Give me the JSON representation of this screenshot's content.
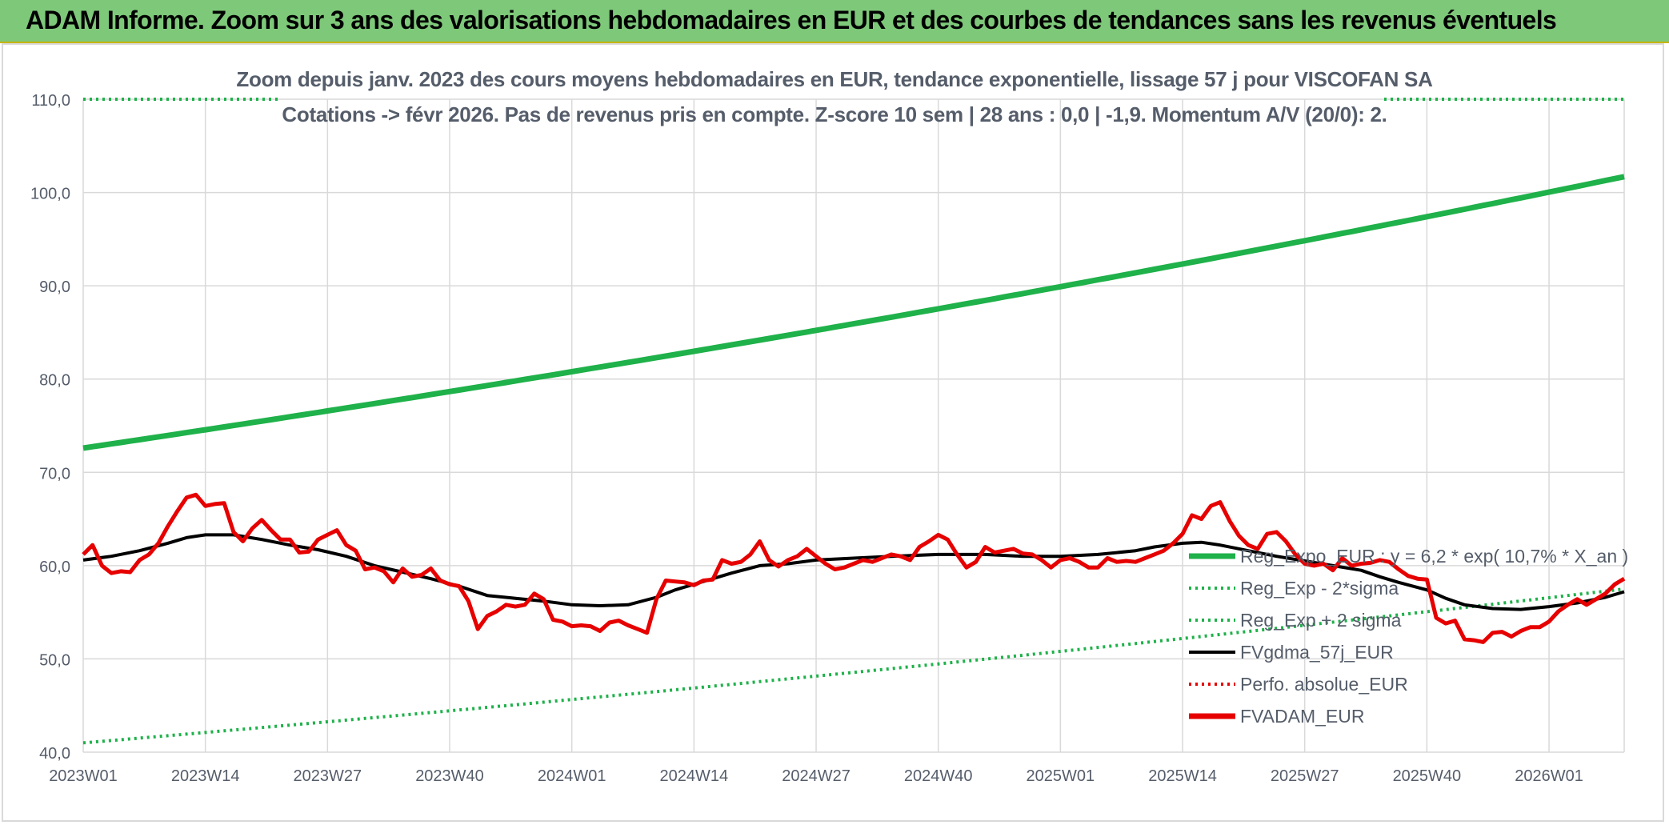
{
  "header": {
    "title": "ADAM Informe. Zoom sur 3 ans des valorisations hebdomadaires en EUR et des courbes de tendances sans les revenus éventuels"
  },
  "colors": {
    "green": "#1fb14a",
    "red": "#e60000",
    "black": "#000000",
    "grid": "#d9d9d9",
    "axis_text": "#555d6a"
  },
  "chart_data": {
    "type": "line",
    "title": "Zoom depuis janv. 2023 des cours moyens hebdomadaires en EUR, tendance exponentielle, lissage 57 j pour VISCOFAN SA",
    "subtitle": "Cotations -> févr 2026. Pas de revenus pris en compte. Z-score 10 sem | 28 ans : 0,0 | -1,9. Momentum A/V (20/0): 2.",
    "ylim": [
      40,
      110
    ],
    "y_ticks": [
      "40,0",
      "50,0",
      "60,0",
      "70,0",
      "80,0",
      "90,0",
      "100,0",
      "110,0"
    ],
    "x_ticks": [
      "2023W01",
      "2023W14",
      "2023W27",
      "2023W40",
      "2024W01",
      "2024W14",
      "2024W27",
      "2024W40",
      "2025W01",
      "2025W14",
      "2025W27",
      "2025W40",
      "2026W01"
    ],
    "x_tick_index": [
      0,
      13,
      26,
      39,
      52,
      65,
      78,
      91,
      104,
      117,
      130,
      143,
      156
    ],
    "n_weeks": 165,
    "grid": true,
    "legend_position": "bottom-right",
    "legend": [
      {
        "label": "Reg_Expo_EUR : y = 6,2 * exp( 10,7% *  X_an )",
        "style": "solid-thick",
        "color": "#1fb14a"
      },
      {
        "label": "Reg_Exp - 2*sigma",
        "style": "dotted",
        "color": "#1fb14a"
      },
      {
        "label": "Reg_Exp + 2 sigma",
        "style": "dotted",
        "color": "#1fb14a"
      },
      {
        "label": "FVgdma_57j_EUR",
        "style": "solid",
        "color": "#000000"
      },
      {
        "label": "Perfo. absolue_EUR",
        "style": "dotted",
        "color": "#e60000"
      },
      {
        "label": "FVADAM_EUR",
        "style": "solid-thick",
        "color": "#e60000"
      }
    ],
    "series": {
      "reg_expo": {
        "start": 72.6,
        "end": 101.7
      },
      "reg_minus": {
        "start": 41.0,
        "end": 57.5
      },
      "reg_plus": {
        "value": 110.0
      },
      "fvgdma": [
        [
          0,
          60.6
        ],
        [
          3,
          61.0
        ],
        [
          6,
          61.6
        ],
        [
          9,
          62.4
        ],
        [
          11,
          63.0
        ],
        [
          13,
          63.3
        ],
        [
          16,
          63.3
        ],
        [
          19,
          62.8
        ],
        [
          22,
          62.2
        ],
        [
          25,
          61.7
        ],
        [
          28,
          61.0
        ],
        [
          31,
          60.0
        ],
        [
          34,
          59.3
        ],
        [
          37,
          58.6
        ],
        [
          40,
          57.8
        ],
        [
          43,
          56.8
        ],
        [
          46,
          56.5
        ],
        [
          49,
          56.2
        ],
        [
          52,
          55.8
        ],
        [
          55,
          55.7
        ],
        [
          58,
          55.8
        ],
        [
          61,
          56.6
        ],
        [
          63,
          57.4
        ],
        [
          66,
          58.3
        ],
        [
          69,
          59.2
        ],
        [
          72,
          60.0
        ],
        [
          75,
          60.2
        ],
        [
          78,
          60.6
        ],
        [
          82,
          60.8
        ],
        [
          86,
          61.0
        ],
        [
          91,
          61.2
        ],
        [
          96,
          61.2
        ],
        [
          100,
          61.0
        ],
        [
          104,
          61.0
        ],
        [
          108,
          61.2
        ],
        [
          112,
          61.6
        ],
        [
          114,
          62.0
        ],
        [
          117,
          62.4
        ],
        [
          119,
          62.5
        ],
        [
          121,
          62.2
        ],
        [
          124,
          61.6
        ],
        [
          127,
          61.0
        ],
        [
          130,
          60.5
        ],
        [
          133,
          60.0
        ],
        [
          136,
          59.5
        ],
        [
          138,
          58.8
        ],
        [
          140,
          58.2
        ],
        [
          143,
          57.4
        ],
        [
          145,
          56.5
        ],
        [
          147,
          55.8
        ],
        [
          150,
          55.4
        ],
        [
          153,
          55.3
        ],
        [
          156,
          55.6
        ],
        [
          159,
          56.0
        ],
        [
          162,
          56.6
        ],
        [
          164,
          57.2
        ]
      ],
      "fvadam": [
        [
          0,
          61.2
        ],
        [
          1,
          62.2
        ],
        [
          2,
          60.0
        ],
        [
          3,
          59.2
        ],
        [
          4,
          59.4
        ],
        [
          5,
          59.3
        ],
        [
          6,
          60.6
        ],
        [
          7,
          61.2
        ],
        [
          8,
          62.4
        ],
        [
          9,
          64.2
        ],
        [
          10,
          65.8
        ],
        [
          11,
          67.3
        ],
        [
          12,
          67.6
        ],
        [
          13,
          66.4
        ],
        [
          14,
          66.6
        ],
        [
          15,
          66.7
        ],
        [
          16,
          63.6
        ],
        [
          17,
          62.6
        ],
        [
          18,
          64.0
        ],
        [
          19,
          64.9
        ],
        [
          20,
          63.8
        ],
        [
          21,
          62.8
        ],
        [
          22,
          62.8
        ],
        [
          23,
          61.4
        ],
        [
          24,
          61.5
        ],
        [
          25,
          62.8
        ],
        [
          26,
          63.3
        ],
        [
          27,
          63.8
        ],
        [
          28,
          62.2
        ],
        [
          29,
          61.6
        ],
        [
          30,
          59.6
        ],
        [
          31,
          59.8
        ],
        [
          32,
          59.4
        ],
        [
          33,
          58.2
        ],
        [
          34,
          59.7
        ],
        [
          35,
          58.8
        ],
        [
          36,
          59.0
        ],
        [
          37,
          59.7
        ],
        [
          38,
          58.4
        ],
        [
          39,
          58.0
        ],
        [
          40,
          57.8
        ],
        [
          41,
          56.2
        ],
        [
          42,
          53.2
        ],
        [
          43,
          54.6
        ],
        [
          44,
          55.1
        ],
        [
          45,
          55.8
        ],
        [
          46,
          55.6
        ],
        [
          47,
          55.8
        ],
        [
          48,
          57.0
        ],
        [
          49,
          56.4
        ],
        [
          50,
          54.2
        ],
        [
          51,
          54.0
        ],
        [
          52,
          53.5
        ],
        [
          53,
          53.6
        ],
        [
          54,
          53.5
        ],
        [
          55,
          53.0
        ],
        [
          56,
          53.9
        ],
        [
          57,
          54.1
        ],
        [
          58,
          53.6
        ],
        [
          59,
          53.2
        ],
        [
          60,
          52.8
        ],
        [
          61,
          56.4
        ],
        [
          62,
          58.4
        ],
        [
          63,
          58.3
        ],
        [
          64,
          58.2
        ],
        [
          65,
          57.9
        ],
        [
          66,
          58.4
        ],
        [
          67,
          58.5
        ],
        [
          68,
          60.6
        ],
        [
          69,
          60.2
        ],
        [
          70,
          60.4
        ],
        [
          71,
          61.2
        ],
        [
          72,
          62.6
        ],
        [
          73,
          60.6
        ],
        [
          74,
          59.9
        ],
        [
          75,
          60.6
        ],
        [
          76,
          61.0
        ],
        [
          77,
          61.8
        ],
        [
          78,
          61.0
        ],
        [
          79,
          60.2
        ],
        [
          80,
          59.6
        ],
        [
          81,
          59.8
        ],
        [
          82,
          60.2
        ],
        [
          83,
          60.6
        ],
        [
          84,
          60.4
        ],
        [
          85,
          60.8
        ],
        [
          86,
          61.2
        ],
        [
          87,
          61.0
        ],
        [
          88,
          60.6
        ],
        [
          89,
          62.0
        ],
        [
          90,
          62.6
        ],
        [
          91,
          63.3
        ],
        [
          92,
          62.8
        ],
        [
          93,
          61.2
        ],
        [
          94,
          59.8
        ],
        [
          95,
          60.4
        ],
        [
          96,
          62.0
        ],
        [
          97,
          61.4
        ],
        [
          98,
          61.6
        ],
        [
          99,
          61.8
        ],
        [
          100,
          61.3
        ],
        [
          101,
          61.2
        ],
        [
          102,
          60.6
        ],
        [
          103,
          59.8
        ],
        [
          104,
          60.6
        ],
        [
          105,
          60.8
        ],
        [
          106,
          60.4
        ],
        [
          107,
          59.8
        ],
        [
          108,
          59.8
        ],
        [
          109,
          60.8
        ],
        [
          110,
          60.4
        ],
        [
          111,
          60.5
        ],
        [
          112,
          60.4
        ],
        [
          113,
          60.8
        ],
        [
          114,
          61.2
        ],
        [
          115,
          61.6
        ],
        [
          116,
          62.4
        ],
        [
          117,
          63.4
        ],
        [
          118,
          65.4
        ],
        [
          119,
          65.0
        ],
        [
          120,
          66.4
        ],
        [
          121,
          66.8
        ],
        [
          122,
          64.8
        ],
        [
          123,
          63.2
        ],
        [
          124,
          62.2
        ],
        [
          125,
          61.8
        ],
        [
          126,
          63.4
        ],
        [
          127,
          63.6
        ],
        [
          128,
          62.6
        ],
        [
          129,
          61.2
        ],
        [
          130,
          60.2
        ],
        [
          131,
          60.0
        ],
        [
          132,
          60.2
        ],
        [
          133,
          59.5
        ],
        [
          134,
          60.8
        ],
        [
          135,
          60.0
        ],
        [
          136,
          60.2
        ],
        [
          137,
          60.3
        ],
        [
          138,
          60.6
        ],
        [
          139,
          60.4
        ],
        [
          140,
          59.6
        ],
        [
          141,
          58.9
        ],
        [
          142,
          58.6
        ],
        [
          143,
          58.5
        ],
        [
          144,
          54.4
        ],
        [
          145,
          53.8
        ],
        [
          146,
          54.1
        ],
        [
          147,
          52.1
        ],
        [
          148,
          52.0
        ],
        [
          149,
          51.8
        ],
        [
          150,
          52.8
        ],
        [
          151,
          52.9
        ],
        [
          152,
          52.4
        ],
        [
          153,
          53.0
        ],
        [
          154,
          53.4
        ],
        [
          155,
          53.4
        ],
        [
          156,
          54.0
        ],
        [
          157,
          55.1
        ],
        [
          158,
          55.8
        ],
        [
          159,
          56.4
        ],
        [
          160,
          55.8
        ],
        [
          161,
          56.4
        ],
        [
          162,
          57.0
        ],
        [
          163,
          58.0
        ],
        [
          164,
          58.6
        ]
      ]
    }
  }
}
